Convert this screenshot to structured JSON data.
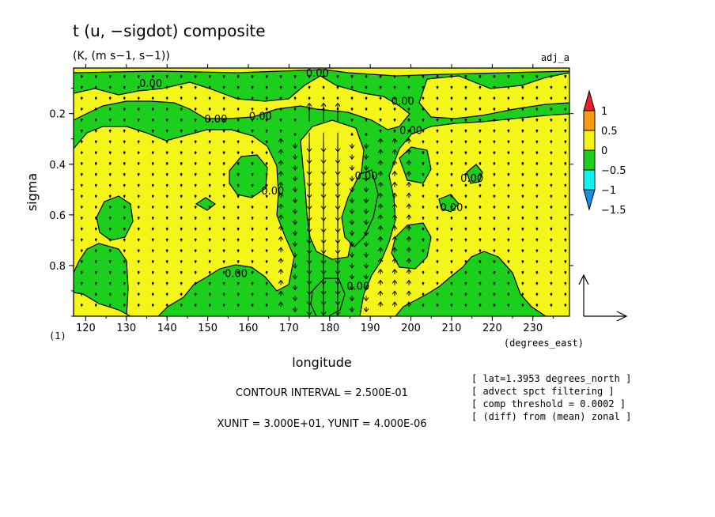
{
  "chart_data": {
    "type": "heatmap",
    "title": "t (u, −sigdot) composite",
    "subtitle": "(K, (m s−1, s−1))",
    "tag": "adj_a",
    "xlabel": "longitude",
    "ylabel": "sigma",
    "x_unit_label": "(degrees_east)",
    "y_unit_label": "(1)",
    "xlim": [
      117,
      239
    ],
    "ylim": [
      1.0,
      0.02
    ],
    "xticks": [
      120,
      130,
      140,
      150,
      160,
      170,
      180,
      190,
      200,
      210,
      220,
      230
    ],
    "yticks": [
      0.2,
      0.4,
      0.6,
      0.8
    ],
    "colorbar": {
      "levels": [
        -1.5,
        -1,
        -0.5,
        0,
        0.5,
        1
      ],
      "labels": [
        "1",
        "0.5",
        "0",
        "−0.5",
        "−1",
        "−1.5"
      ],
      "colors": [
        "#e8202a",
        "#f59b10",
        "#f5f51a",
        "#1ccf1c",
        "#10f0f0",
        "#1a8fe8"
      ]
    },
    "contour_labels": [
      {
        "text": "0.00",
        "x": 136,
        "y": 0.095
      },
      {
        "text": "0.00",
        "x": 152,
        "y": 0.235
      },
      {
        "text": "0.00",
        "x": 177,
        "y": 0.055
      },
      {
        "text": "0.00",
        "x": 163,
        "y": 0.225
      },
      {
        "text": "0.00",
        "x": 198,
        "y": 0.165
      },
      {
        "text": "0.00",
        "x": 200,
        "y": 0.28
      },
      {
        "text": "0.00",
        "x": 210,
        "y": 0.585
      },
      {
        "text": "0.00",
        "x": 215,
        "y": 0.47
      },
      {
        "text": "0.00",
        "x": 189,
        "y": 0.46
      },
      {
        "text": "0.00",
        "x": 166,
        "y": 0.52
      },
      {
        "text": "0.00",
        "x": 157,
        "y": 0.845
      },
      {
        "text": "0.00",
        "x": 187,
        "y": 0.895
      }
    ],
    "vectors": {
      "reference_vector_label": "",
      "strong_columns_lon": [
        176,
        180,
        183
      ]
    }
  },
  "info_lines": [
    "[ lat=1.3953 degrees_north ]",
    "[ advect spct filtering ]",
    "[ comp threshold = 0.0002 ]",
    "[ (diff) from (mean) zonal ]"
  ],
  "contour_interval": "CONTOUR INTERVAL = 2.500E-01",
  "units_line": "XUNIT = 3.000E+01, YUNIT = 4.000E-06"
}
